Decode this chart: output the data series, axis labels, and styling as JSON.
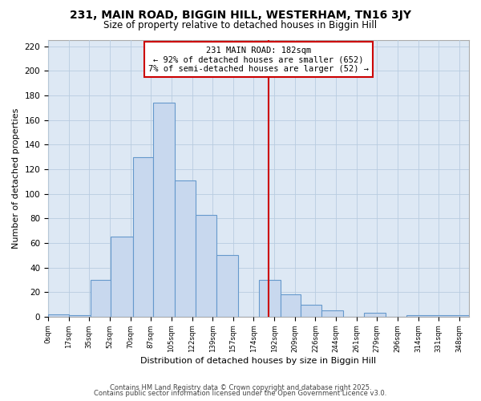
{
  "title": "231, MAIN ROAD, BIGGIN HILL, WESTERHAM, TN16 3JY",
  "subtitle": "Size of property relative to detached houses in Biggin Hill",
  "xlabel": "Distribution of detached houses by size in Biggin Hill",
  "ylabel": "Number of detached properties",
  "bar_counts": [
    2,
    1,
    30,
    65,
    130,
    174,
    111,
    83,
    50,
    0,
    30,
    18,
    10,
    5,
    0,
    3,
    0,
    1
  ],
  "bin_edges": [
    0,
    17,
    35,
    52,
    70,
    87,
    105,
    122,
    139,
    157,
    174,
    192,
    209,
    226,
    244,
    261,
    279,
    296,
    348
  ],
  "tick_labels": [
    "0sqm",
    "17sqm",
    "35sqm",
    "52sqm",
    "70sqm",
    "87sqm",
    "105sqm",
    "122sqm",
    "139sqm",
    "157sqm",
    "174sqm",
    "192sqm",
    "209sqm",
    "226sqm",
    "244sqm",
    "261sqm",
    "279sqm",
    "296sqm",
    "314sqm",
    "331sqm",
    "348sqm"
  ],
  "bar_color": "#c8d8ee",
  "bar_edge_color": "#6699cc",
  "vline_x": 182,
  "vline_color": "#cc0000",
  "annotation_line1": "231 MAIN ROAD: 182sqm",
  "annotation_line2": "← 92% of detached houses are smaller (652)",
  "annotation_line3": "7% of semi-detached houses are larger (52) →",
  "annotation_box_color": "#ffffff",
  "annotation_box_edge": "#cc0000",
  "ylim": [
    0,
    225
  ],
  "yticks": [
    0,
    20,
    40,
    60,
    80,
    100,
    120,
    140,
    160,
    180,
    200,
    220
  ],
  "footnote1": "Contains HM Land Registry data © Crown copyright and database right 2025.",
  "footnote2": "Contains public sector information licensed under the Open Government Licence v3.0.",
  "background_color": "#ffffff",
  "plot_bg_color": "#dde8f4",
  "grid_color": "#b8cce0"
}
